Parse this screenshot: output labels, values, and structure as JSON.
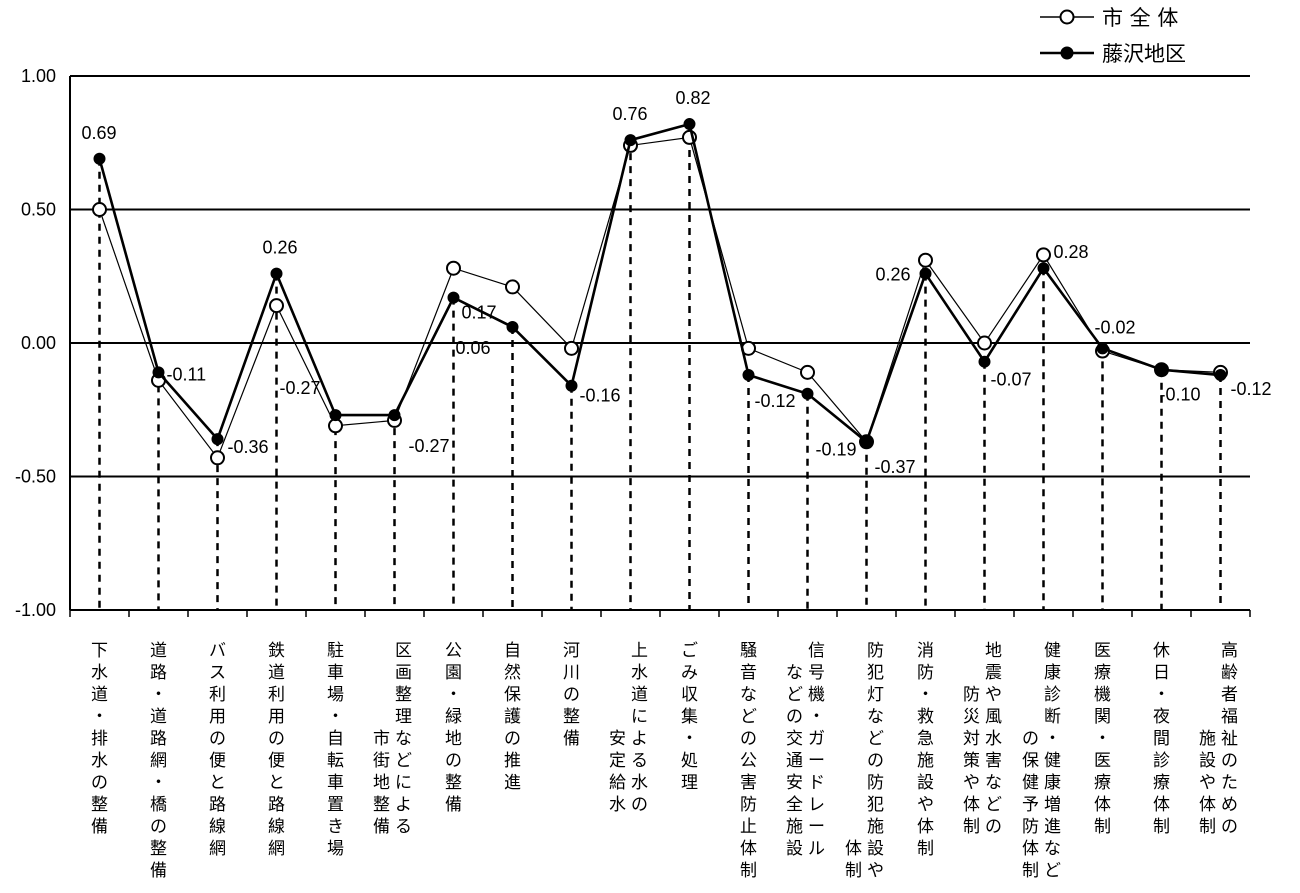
{
  "chart_data": {
    "type": "line",
    "ylim": [
      -1.0,
      1.0
    ],
    "yticks": [
      "1.00",
      "0.50",
      "0.00",
      "-0.50",
      "-1.00"
    ],
    "ytick_values": [
      1.0,
      0.5,
      0.0,
      -0.5,
      -1.0
    ],
    "grid": true,
    "legend_position": "top-right",
    "categories": [
      "下水道・排水の整備",
      "道路・道路網・橋の整備",
      "バス利用の便と路線網",
      "鉄道利用の便と路線網",
      "駐車場・自転車置き場",
      "区画整理などによる市街地整備",
      "公園・緑地の整備",
      "自然保護の推進",
      "河川の整備",
      "上水道による水の安定給水",
      "ごみ収集・処理",
      "騒音などの公害防止体制",
      "信号機・ガードレールなどの交通安全施設",
      "防犯灯などの防犯施設や体制",
      "消防・救急施設や体制",
      "地震や風水害などの防災対策や体制",
      "健康診断・健康増進などの保健予防体制",
      "医療機関・医療体制",
      "休日・夜間診療体制",
      "高齢者福祉のための施設や体制"
    ],
    "category_columns": [
      [
        "下水道・排水の整備"
      ],
      [
        "道路・道路網・橋の整備"
      ],
      [
        "バス利用の便と路線網"
      ],
      [
        "鉄道利用の便と路線網"
      ],
      [
        "駐車場・自転車置き場"
      ],
      [
        "区画整理などによる",
        "市街地整備"
      ],
      [
        "公園・緑地の整備"
      ],
      [
        "自然保護の推進"
      ],
      [
        "河川の整備"
      ],
      [
        "上水道による水の",
        "安定給水"
      ],
      [
        "ごみ収集・処理"
      ],
      [
        "騒音などの公害防止体制"
      ],
      [
        "信号機・ガードレール",
        "などの交通安全施設"
      ],
      [
        "防犯灯などの防犯施設や",
        "体制"
      ],
      [
        "消防・救急施設や体制"
      ],
      [
        "地震や風水害などの",
        "防災対策や体制"
      ],
      [
        "健康診断・健康増進など",
        "の保健予防体制"
      ],
      [
        "医療機関・医療体制"
      ],
      [
        "休日・夜間診療体制"
      ],
      [
        "高齢者福祉のための",
        "施設や体制"
      ]
    ],
    "series": [
      {
        "name": "市 全 体",
        "marker": "open-circle",
        "color": "#000000",
        "values": [
          0.5,
          -0.14,
          -0.43,
          0.14,
          -0.31,
          -0.29,
          0.28,
          0.21,
          -0.02,
          0.74,
          0.77,
          -0.02,
          -0.11,
          -0.37,
          0.31,
          0.0,
          0.33,
          -0.03,
          -0.1,
          -0.11
        ]
      },
      {
        "name": "藤沢地区",
        "marker": "filled-circle",
        "color": "#000000",
        "values": [
          0.69,
          -0.11,
          -0.36,
          0.26,
          -0.27,
          -0.27,
          0.17,
          0.06,
          -0.16,
          0.76,
          0.82,
          -0.12,
          -0.19,
          -0.37,
          0.26,
          -0.07,
          0.28,
          -0.02,
          -0.1,
          -0.12
        ],
        "data_labels": [
          "0.69",
          "-0.11",
          "-0.36",
          "0.26",
          "-0.27",
          "-0.27",
          "0.17",
          "0.06",
          "-0.16",
          "0.76",
          "0.82",
          "-0.12",
          "-0.19",
          "-0.37",
          "0.26",
          "-0.07",
          "0.28",
          "-0.02",
          "-0.10",
          "-0.12"
        ]
      }
    ]
  }
}
